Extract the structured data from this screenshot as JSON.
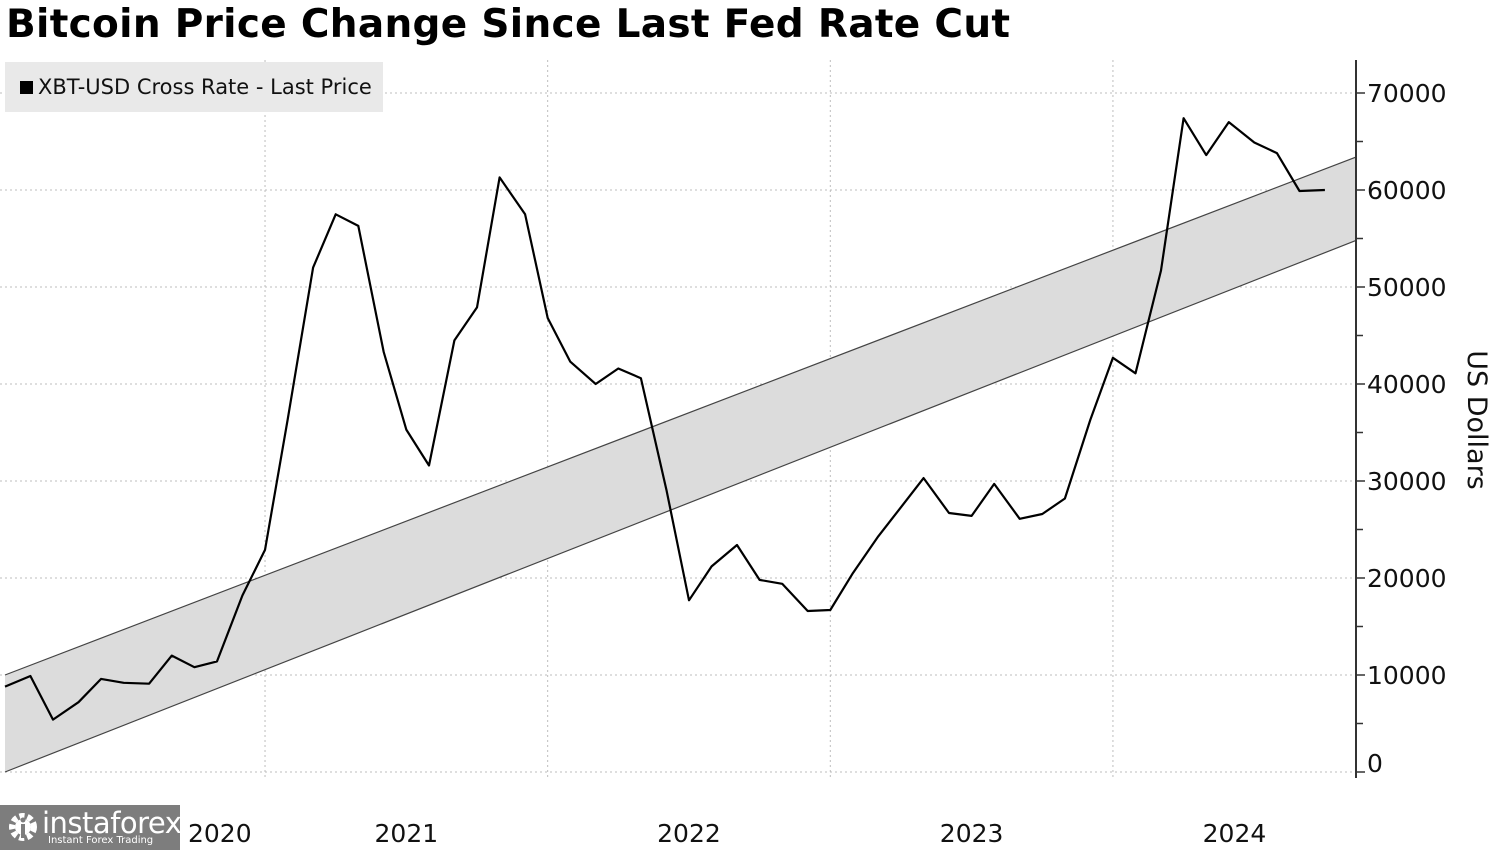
{
  "chart_data": {
    "type": "line",
    "title": "Bitcoin Price Change Since Last Fed Rate Cut",
    "ylabel": "US Dollars",
    "xlabel": "",
    "ylim": [
      0,
      70000
    ],
    "xlim": [
      2020.08,
      2024.86
    ],
    "y_ticks": [
      "0",
      "10000",
      "20000",
      "30000",
      "40000",
      "50000",
      "60000",
      "70000"
    ],
    "x_ticks": [
      {
        "label": "2020",
        "pos": 2020.5
      },
      {
        "label": "2021",
        "pos": 2021.5
      },
      {
        "label": "2022",
        "pos": 2022.5
      },
      {
        "label": "2023",
        "pos": 2023.5
      },
      {
        "label": "2024",
        "pos": 2024.43
      }
    ],
    "x_grid": [
      2021,
      2022,
      2023,
      2024
    ],
    "grid": true,
    "legend": {
      "placement": "top-left",
      "entries": [
        "XBT-USD Cross Rate - Last Price"
      ]
    },
    "series": [
      {
        "name": "XBT-USD Cross Rate - Last Price",
        "color": "#000000",
        "x": [
          2020.08,
          2020.17,
          2020.25,
          2020.34,
          2020.42,
          2020.5,
          2020.59,
          2020.67,
          2020.75,
          2020.83,
          2020.92,
          2021.0,
          2021.08,
          2021.17,
          2021.25,
          2021.33,
          2021.42,
          2021.5,
          2021.58,
          2021.67,
          2021.75,
          2021.83,
          2021.92,
          2022.0,
          2022.08,
          2022.17,
          2022.25,
          2022.33,
          2022.42,
          2022.5,
          2022.58,
          2022.67,
          2022.75,
          2022.83,
          2022.92,
          2023.0,
          2023.08,
          2023.17,
          2023.25,
          2023.33,
          2023.42,
          2023.5,
          2023.58,
          2023.67,
          2023.75,
          2023.83,
          2023.92,
          2024.0,
          2024.08,
          2024.17,
          2024.25,
          2024.33,
          2024.41,
          2024.5,
          2024.58,
          2024.66,
          2024.75
        ],
        "values": [
          8800,
          9900,
          5400,
          7200,
          9600,
          9200,
          9100,
          12000,
          10800,
          11400,
          18200,
          22900,
          36300,
          52000,
          57500,
          56300,
          43300,
          35300,
          31600,
          44500,
          47900,
          61300,
          57500,
          46800,
          42300,
          40000,
          41600,
          40600,
          29100,
          17700,
          21200,
          23400,
          19800,
          19400,
          16600,
          16700,
          20500,
          24300,
          27300,
          30300,
          26700,
          26400,
          29700,
          26100,
          26600,
          28200,
          36300,
          42700,
          41100,
          51700,
          67400,
          63600,
          67000,
          64900,
          63800,
          59900,
          60000
        ]
      }
    ],
    "band": {
      "fill": "#dcdcdc",
      "upper": {
        "x": [
          2020.08,
          2024.86
        ],
        "values": [
          10000,
          63400
        ]
      },
      "lower": {
        "x": [
          2020.08,
          2024.86
        ],
        "values": [
          0,
          54800
        ]
      }
    }
  },
  "watermark": {
    "name": "instaforex",
    "tagline": "Instant Forex Trading"
  }
}
